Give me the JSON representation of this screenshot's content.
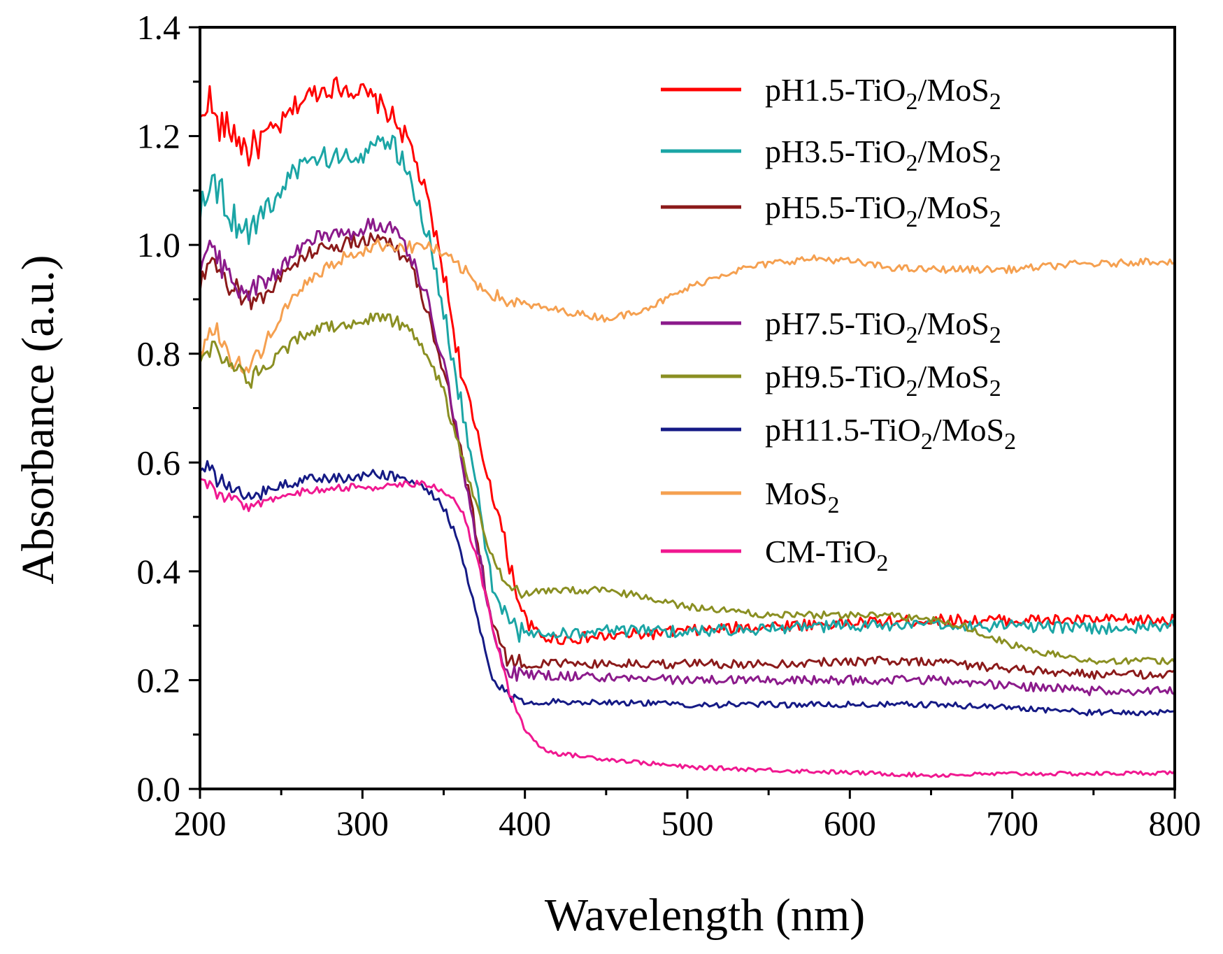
{
  "chart_data": {
    "type": "line",
    "xlabel": "Wavelength (nm)",
    "ylabel": "Absorbance (a.u.)",
    "xlim": [
      200,
      800
    ],
    "ylim": [
      0.0,
      1.4
    ],
    "x_ticks": [
      "200",
      "300",
      "400",
      "500",
      "600",
      "700",
      "800"
    ],
    "y_ticks": [
      "0.0",
      "0.2",
      "0.4",
      "0.6",
      "0.8",
      "1.0",
      "1.2",
      "1.4"
    ],
    "legend_position": "top-right (inside plot)",
    "series": [
      {
        "name": "pH1.5-TiO2/MoS2",
        "label": {
          "pre": "pH1.5-TiO",
          "sub1": "2",
          "mid": "/MoS",
          "sub2": "2"
        },
        "color": "#ff0000",
        "points": [
          [
            200,
            1.22
          ],
          [
            205,
            1.28
          ],
          [
            210,
            1.22
          ],
          [
            220,
            1.21
          ],
          [
            230,
            1.17
          ],
          [
            240,
            1.2
          ],
          [
            250,
            1.22
          ],
          [
            260,
            1.26
          ],
          [
            270,
            1.28
          ],
          [
            280,
            1.29
          ],
          [
            290,
            1.29
          ],
          [
            300,
            1.28
          ],
          [
            310,
            1.26
          ],
          [
            320,
            1.23
          ],
          [
            330,
            1.18
          ],
          [
            340,
            1.08
          ],
          [
            350,
            0.95
          ],
          [
            360,
            0.78
          ],
          [
            370,
            0.65
          ],
          [
            380,
            0.55
          ],
          [
            390,
            0.42
          ],
          [
            400,
            0.31
          ],
          [
            410,
            0.28
          ],
          [
            420,
            0.275
          ],
          [
            450,
            0.28
          ],
          [
            500,
            0.29
          ],
          [
            550,
            0.3
          ],
          [
            600,
            0.305
          ],
          [
            650,
            0.31
          ],
          [
            700,
            0.31
          ],
          [
            750,
            0.31
          ],
          [
            800,
            0.31
          ]
        ],
        "jitter": 0.02
      },
      {
        "name": "pH3.5-TiO2/MoS2",
        "label": {
          "pre": "pH3.5-TiO",
          "sub1": "2",
          "mid": "/MoS",
          "sub2": "2"
        },
        "color": "#1ba5a5",
        "points": [
          [
            200,
            1.07
          ],
          [
            205,
            1.12
          ],
          [
            210,
            1.11
          ],
          [
            220,
            1.05
          ],
          [
            230,
            1.03
          ],
          [
            240,
            1.06
          ],
          [
            250,
            1.1
          ],
          [
            260,
            1.14
          ],
          [
            270,
            1.16
          ],
          [
            280,
            1.16
          ],
          [
            290,
            1.16
          ],
          [
            300,
            1.17
          ],
          [
            310,
            1.19
          ],
          [
            320,
            1.18
          ],
          [
            330,
            1.12
          ],
          [
            340,
            1.02
          ],
          [
            350,
            0.88
          ],
          [
            360,
            0.72
          ],
          [
            370,
            0.55
          ],
          [
            380,
            0.38
          ],
          [
            390,
            0.3
          ],
          [
            400,
            0.285
          ],
          [
            420,
            0.285
          ],
          [
            450,
            0.29
          ],
          [
            500,
            0.29
          ],
          [
            550,
            0.295
          ],
          [
            600,
            0.3
          ],
          [
            650,
            0.3
          ],
          [
            700,
            0.3
          ],
          [
            750,
            0.295
          ],
          [
            800,
            0.3
          ]
        ],
        "jitter": 0.02
      },
      {
        "name": "pH5.5-TiO2/MoS2",
        "label": {
          "pre": "pH5.5-TiO",
          "sub1": "2",
          "mid": "/MoS",
          "sub2": "2"
        },
        "color": "#8b1a1a",
        "points": [
          [
            200,
            0.92
          ],
          [
            205,
            0.96
          ],
          [
            210,
            0.95
          ],
          [
            220,
            0.92
          ],
          [
            230,
            0.9
          ],
          [
            240,
            0.91
          ],
          [
            250,
            0.94
          ],
          [
            260,
            0.97
          ],
          [
            270,
            0.99
          ],
          [
            280,
            1.0
          ],
          [
            290,
            1.0
          ],
          [
            300,
            1.01
          ],
          [
            310,
            1.01
          ],
          [
            320,
            1.0
          ],
          [
            330,
            0.96
          ],
          [
            340,
            0.88
          ],
          [
            350,
            0.77
          ],
          [
            360,
            0.63
          ],
          [
            370,
            0.47
          ],
          [
            380,
            0.3
          ],
          [
            390,
            0.235
          ],
          [
            400,
            0.23
          ],
          [
            450,
            0.23
          ],
          [
            500,
            0.23
          ],
          [
            550,
            0.23
          ],
          [
            600,
            0.235
          ],
          [
            650,
            0.235
          ],
          [
            700,
            0.22
          ],
          [
            750,
            0.21
          ],
          [
            800,
            0.21
          ]
        ],
        "jitter": 0.015
      },
      {
        "name": "MoS2",
        "label": {
          "pre": "MoS",
          "sub1": "2",
          "mid": "",
          "sub2": ""
        },
        "color": "#f5a050",
        "points": [
          [
            200,
            0.8
          ],
          [
            205,
            0.84
          ],
          [
            210,
            0.84
          ],
          [
            220,
            0.79
          ],
          [
            230,
            0.77
          ],
          [
            240,
            0.82
          ],
          [
            250,
            0.87
          ],
          [
            260,
            0.91
          ],
          [
            270,
            0.94
          ],
          [
            280,
            0.96
          ],
          [
            290,
            0.98
          ],
          [
            300,
            0.99
          ],
          [
            310,
            1.0
          ],
          [
            320,
            1.0
          ],
          [
            330,
            0.995
          ],
          [
            340,
            1.0
          ],
          [
            350,
            0.98
          ],
          [
            360,
            0.96
          ],
          [
            370,
            0.93
          ],
          [
            380,
            0.91
          ],
          [
            390,
            0.895
          ],
          [
            400,
            0.89
          ],
          [
            420,
            0.88
          ],
          [
            440,
            0.87
          ],
          [
            450,
            0.865
          ],
          [
            460,
            0.87
          ],
          [
            480,
            0.89
          ],
          [
            500,
            0.92
          ],
          [
            520,
            0.945
          ],
          [
            540,
            0.96
          ],
          [
            560,
            0.97
          ],
          [
            580,
            0.975
          ],
          [
            600,
            0.97
          ],
          [
            620,
            0.96
          ],
          [
            640,
            0.955
          ],
          [
            660,
            0.955
          ],
          [
            680,
            0.955
          ],
          [
            700,
            0.955
          ],
          [
            720,
            0.96
          ],
          [
            740,
            0.965
          ],
          [
            760,
            0.965
          ],
          [
            780,
            0.97
          ],
          [
            800,
            0.97
          ]
        ],
        "jitter": 0.012
      },
      {
        "name": "pH7.5-TiO2/MoS2",
        "label": {
          "pre": "pH7.5-TiO",
          "sub1": "2",
          "mid": "/MoS",
          "sub2": "2"
        },
        "color": "#8b1a8b",
        "points": [
          [
            200,
            0.97
          ],
          [
            205,
            1.0
          ],
          [
            210,
            0.98
          ],
          [
            220,
            0.93
          ],
          [
            230,
            0.91
          ],
          [
            240,
            0.93
          ],
          [
            250,
            0.96
          ],
          [
            260,
            0.99
          ],
          [
            270,
            1.01
          ],
          [
            280,
            1.02
          ],
          [
            290,
            1.02
          ],
          [
            300,
            1.03
          ],
          [
            310,
            1.04
          ],
          [
            320,
            1.03
          ],
          [
            330,
            0.98
          ],
          [
            340,
            0.9
          ],
          [
            350,
            0.78
          ],
          [
            360,
            0.63
          ],
          [
            370,
            0.46
          ],
          [
            380,
            0.29
          ],
          [
            390,
            0.215
          ],
          [
            400,
            0.21
          ],
          [
            450,
            0.205
          ],
          [
            500,
            0.2
          ],
          [
            550,
            0.2
          ],
          [
            600,
            0.2
          ],
          [
            650,
            0.2
          ],
          [
            700,
            0.19
          ],
          [
            750,
            0.18
          ],
          [
            800,
            0.18
          ]
        ],
        "jitter": 0.015
      },
      {
        "name": "pH9.5-TiO2/MoS2",
        "label": {
          "pre": "pH9.5-TiO",
          "sub1": "2",
          "mid": "/MoS",
          "sub2": "2"
        },
        "color": "#8a8f22",
        "points": [
          [
            200,
            0.79
          ],
          [
            205,
            0.81
          ],
          [
            210,
            0.81
          ],
          [
            220,
            0.78
          ],
          [
            230,
            0.75
          ],
          [
            240,
            0.77
          ],
          [
            250,
            0.8
          ],
          [
            260,
            0.83
          ],
          [
            270,
            0.845
          ],
          [
            280,
            0.85
          ],
          [
            290,
            0.85
          ],
          [
            300,
            0.86
          ],
          [
            310,
            0.87
          ],
          [
            320,
            0.86
          ],
          [
            330,
            0.84
          ],
          [
            340,
            0.8
          ],
          [
            350,
            0.73
          ],
          [
            360,
            0.62
          ],
          [
            370,
            0.52
          ],
          [
            380,
            0.42
          ],
          [
            390,
            0.37
          ],
          [
            400,
            0.36
          ],
          [
            420,
            0.365
          ],
          [
            450,
            0.365
          ],
          [
            470,
            0.355
          ],
          [
            500,
            0.335
          ],
          [
            550,
            0.32
          ],
          [
            600,
            0.32
          ],
          [
            620,
            0.32
          ],
          [
            650,
            0.31
          ],
          [
            670,
            0.3
          ],
          [
            700,
            0.265
          ],
          [
            720,
            0.25
          ],
          [
            750,
            0.235
          ],
          [
            800,
            0.235
          ]
        ],
        "jitter": 0.012
      },
      {
        "name": "pH11.5-TiO2/MoS2",
        "label": {
          "pre": "pH11.5-TiO",
          "sub1": "2",
          "mid": "/MoS",
          "sub2": "2"
        },
        "color": "#151a85",
        "points": [
          [
            200,
            0.58
          ],
          [
            205,
            0.59
          ],
          [
            210,
            0.57
          ],
          [
            220,
            0.55
          ],
          [
            230,
            0.53
          ],
          [
            240,
            0.55
          ],
          [
            250,
            0.56
          ],
          [
            260,
            0.565
          ],
          [
            270,
            0.57
          ],
          [
            280,
            0.57
          ],
          [
            290,
            0.57
          ],
          [
            300,
            0.575
          ],
          [
            310,
            0.58
          ],
          [
            320,
            0.575
          ],
          [
            330,
            0.565
          ],
          [
            340,
            0.55
          ],
          [
            350,
            0.52
          ],
          [
            360,
            0.44
          ],
          [
            370,
            0.32
          ],
          [
            380,
            0.2
          ],
          [
            390,
            0.17
          ],
          [
            400,
            0.16
          ],
          [
            450,
            0.16
          ],
          [
            500,
            0.155
          ],
          [
            550,
            0.155
          ],
          [
            600,
            0.155
          ],
          [
            650,
            0.155
          ],
          [
            700,
            0.15
          ],
          [
            750,
            0.14
          ],
          [
            800,
            0.14
          ]
        ],
        "jitter": 0.01
      },
      {
        "name": "CM-TiO2",
        "label": {
          "pre": "CM-TiO",
          "sub1": "2",
          "mid": "",
          "sub2": ""
        },
        "color": "#f01890",
        "points": [
          [
            200,
            0.56
          ],
          [
            205,
            0.56
          ],
          [
            210,
            0.54
          ],
          [
            220,
            0.53
          ],
          [
            230,
            0.52
          ],
          [
            240,
            0.53
          ],
          [
            250,
            0.54
          ],
          [
            260,
            0.545
          ],
          [
            270,
            0.55
          ],
          [
            280,
            0.55
          ],
          [
            290,
            0.555
          ],
          [
            300,
            0.555
          ],
          [
            310,
            0.555
          ],
          [
            320,
            0.56
          ],
          [
            330,
            0.56
          ],
          [
            340,
            0.56
          ],
          [
            350,
            0.55
          ],
          [
            360,
            0.52
          ],
          [
            370,
            0.43
          ],
          [
            380,
            0.3
          ],
          [
            390,
            0.18
          ],
          [
            400,
            0.11
          ],
          [
            410,
            0.075
          ],
          [
            420,
            0.065
          ],
          [
            450,
            0.055
          ],
          [
            500,
            0.04
          ],
          [
            550,
            0.035
          ],
          [
            600,
            0.03
          ],
          [
            650,
            0.025
          ],
          [
            700,
            0.028
          ],
          [
            750,
            0.028
          ],
          [
            800,
            0.03
          ]
        ],
        "jitter": 0.007
      }
    ]
  }
}
